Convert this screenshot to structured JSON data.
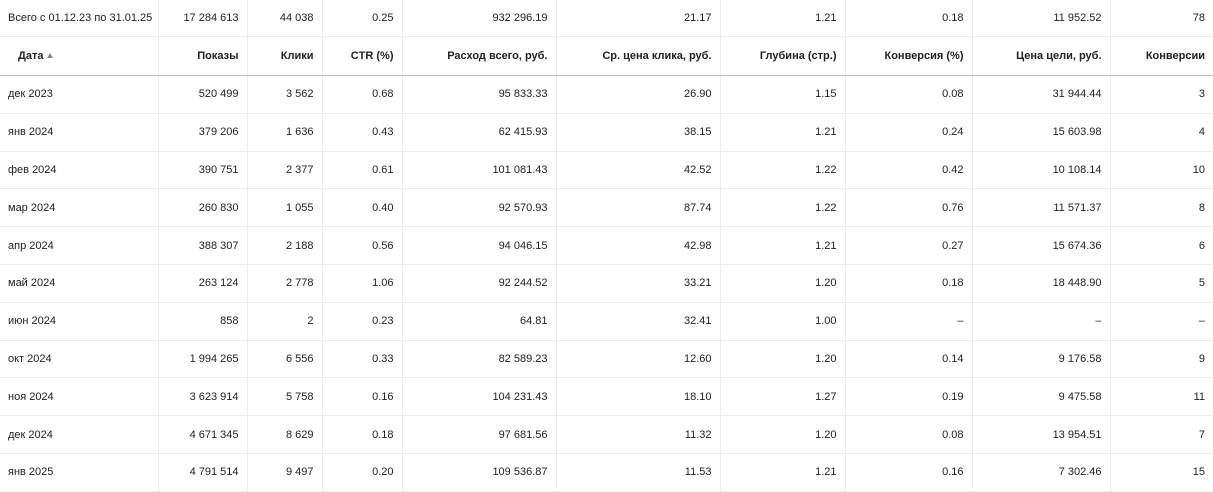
{
  "totals": [
    "Всего с 01.12.23 по 31.01.25",
    "17 284 613",
    "44 038",
    "0.25",
    "932 296.19",
    "21.17",
    "1.21",
    "0.18",
    "11 952.52",
    "78"
  ],
  "header": [
    "Дата",
    "Показы",
    "Клики",
    "CTR (%)",
    "Расход всего, руб.",
    "Ср. цена клика, руб.",
    "Глубина (стр.)",
    "Конверсия (%)",
    "Цена цели, руб.",
    "Конверсии"
  ],
  "rows": [
    [
      "дек 2023",
      "520 499",
      "3 562",
      "0.68",
      "95 833.33",
      "26.90",
      "1.15",
      "0.08",
      "31 944.44",
      "3"
    ],
    [
      "янв 2024",
      "379 206",
      "1 636",
      "0.43",
      "62 415.93",
      "38.15",
      "1.21",
      "0.24",
      "15 603.98",
      "4"
    ],
    [
      "фев 2024",
      "390 751",
      "2 377",
      "0.61",
      "101 081.43",
      "42.52",
      "1.22",
      "0.42",
      "10 108.14",
      "10"
    ],
    [
      "мар 2024",
      "260 830",
      "1 055",
      "0.40",
      "92 570.93",
      "87.74",
      "1.22",
      "0.76",
      "11 571.37",
      "8"
    ],
    [
      "апр 2024",
      "388 307",
      "2 188",
      "0.56",
      "94 046.15",
      "42.98",
      "1.21",
      "0.27",
      "15 674.36",
      "6"
    ],
    [
      "май 2024",
      "263 124",
      "2 778",
      "1.06",
      "92 244.52",
      "33.21",
      "1.20",
      "0.18",
      "18 448.90",
      "5"
    ],
    [
      "июн 2024",
      "858",
      "2",
      "0.23",
      "64.81",
      "32.41",
      "1.00",
      "–",
      "–",
      "–"
    ],
    [
      "окт 2024",
      "1 994 265",
      "6 556",
      "0.33",
      "82 589.23",
      "12.60",
      "1.20",
      "0.14",
      "9 176.58",
      "9"
    ],
    [
      "ноя 2024",
      "3 623 914",
      "5 758",
      "0.16",
      "104 231.43",
      "18.10",
      "1.27",
      "0.19",
      "9 475.58",
      "11"
    ],
    [
      "дек 2024",
      "4 671 345",
      "8 629",
      "0.18",
      "97 681.56",
      "11.32",
      "1.20",
      "0.08",
      "13 954.51",
      "7"
    ],
    [
      "янв 2025",
      "4 791 514",
      "9 497",
      "0.20",
      "109 536.87",
      "11.53",
      "1.21",
      "0.16",
      "7 302.46",
      "15"
    ]
  ]
}
